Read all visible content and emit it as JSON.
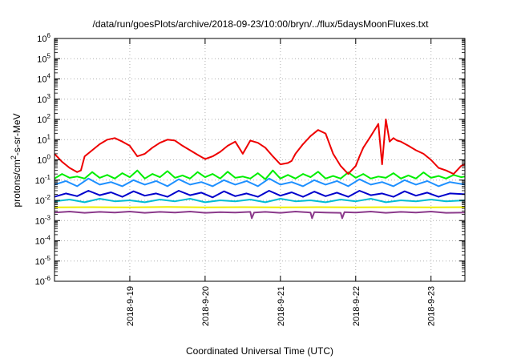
{
  "chart_data": {
    "type": "line",
    "title": "/data/run/goesPlots/archive/2018-09-23/10:00/bryn/../flux/5daysMoonFluxes.txt",
    "xlabel": "Coordinated Universal Time (UTC)",
    "ylabel": "protons/cm²-s-sr-MeV",
    "ylabel_base": "protons/cm",
    "ylabel_sup": "2",
    "ylabel_rest": "-s-sr-MeV",
    "y_scale": "log",
    "ylim": [
      1e-06,
      1000000.0
    ],
    "xlim": [
      0,
      5.45
    ],
    "x_ticks": [
      1,
      2,
      3,
      4,
      5
    ],
    "x_tick_labels": [
      "2018-9-19",
      "2018-9-20",
      "2018-9-21",
      "2018-9-22",
      "2018-9-23"
    ],
    "y_ticks": [
      -6,
      -5,
      -4,
      -3,
      -2,
      -1,
      0,
      1,
      2,
      3,
      4,
      5,
      6
    ],
    "y_tick_labels": [
      {
        "base": "10",
        "exp": "-6"
      },
      {
        "base": "10",
        "exp": "-5"
      },
      {
        "base": "10",
        "exp": "-4"
      },
      {
        "base": "10",
        "exp": "-3"
      },
      {
        "base": "10",
        "exp": "-2"
      },
      {
        "base": "10",
        "exp": "-1"
      },
      {
        "base": "10",
        "exp": "0"
      },
      {
        "base": "10",
        "exp": "1"
      },
      {
        "base": "10",
        "exp": "2"
      },
      {
        "base": "10",
        "exp": "3"
      },
      {
        "base": "10",
        "exp": "4"
      },
      {
        "base": "10",
        "exp": "5"
      },
      {
        "base": "10",
        "exp": "6"
      }
    ],
    "grid": true,
    "series": [
      {
        "color": "#ee0000",
        "x": [
          0.0,
          0.1,
          0.2,
          0.3,
          0.35,
          0.4,
          0.5,
          0.6,
          0.7,
          0.8,
          0.9,
          1.0,
          1.1,
          1.2,
          1.3,
          1.4,
          1.5,
          1.6,
          1.7,
          1.8,
          1.9,
          2.0,
          2.1,
          2.2,
          2.3,
          2.4,
          2.5,
          2.6,
          2.7,
          2.8,
          2.9,
          3.0,
          3.1,
          3.15,
          3.2,
          3.3,
          3.4,
          3.5,
          3.6,
          3.7,
          3.8,
          3.9,
          4.0,
          4.05,
          4.1,
          4.2,
          4.3,
          4.35,
          4.4,
          4.45,
          4.5,
          4.55,
          4.6,
          4.7,
          4.8,
          4.9,
          5.0,
          5.1,
          5.2,
          5.3,
          5.4,
          5.45
        ],
        "y": [
          2,
          0.8,
          0.4,
          0.25,
          0.3,
          1.5,
          3,
          6,
          10,
          12,
          8,
          5,
          1.5,
          2,
          4,
          7,
          10,
          9,
          5,
          3,
          1.8,
          1.1,
          1.5,
          2.5,
          5,
          8,
          2,
          9,
          7,
          4,
          1.5,
          0.6,
          0.7,
          0.9,
          2,
          6,
          15,
          30,
          20,
          2,
          0.5,
          0.2,
          0.5,
          1.5,
          4,
          15,
          60,
          0.6,
          100,
          8,
          12,
          9,
          8,
          5,
          3,
          2,
          1,
          0.4,
          0.3,
          0.2,
          0.5,
          0.6
        ]
      },
      {
        "color": "#00ee00",
        "x": [
          0.0,
          0.1,
          0.2,
          0.3,
          0.4,
          0.5,
          0.6,
          0.7,
          0.8,
          0.9,
          1.0,
          1.1,
          1.2,
          1.3,
          1.4,
          1.5,
          1.6,
          1.7,
          1.8,
          1.9,
          2.0,
          2.1,
          2.2,
          2.3,
          2.4,
          2.5,
          2.6,
          2.7,
          2.8,
          2.9,
          3.0,
          3.1,
          3.2,
          3.3,
          3.4,
          3.5,
          3.6,
          3.7,
          3.8,
          3.9,
          4.0,
          4.1,
          4.2,
          4.3,
          4.4,
          4.5,
          4.6,
          4.7,
          4.8,
          4.9,
          5.0,
          5.1,
          5.2,
          5.3,
          5.4,
          5.45
        ],
        "y": [
          0.12,
          0.2,
          0.13,
          0.15,
          0.12,
          0.25,
          0.13,
          0.18,
          0.12,
          0.22,
          0.14,
          0.3,
          0.12,
          0.2,
          0.14,
          0.28,
          0.13,
          0.17,
          0.12,
          0.25,
          0.14,
          0.2,
          0.12,
          0.26,
          0.13,
          0.15,
          0.12,
          0.22,
          0.11,
          0.3,
          0.12,
          0.18,
          0.12,
          0.2,
          0.14,
          0.26,
          0.12,
          0.16,
          0.12,
          0.24,
          0.13,
          0.2,
          0.12,
          0.15,
          0.13,
          0.22,
          0.12,
          0.17,
          0.12,
          0.24,
          0.13,
          0.16,
          0.12,
          0.18,
          0.14,
          0.15
        ]
      },
      {
        "color": "#1e90ff",
        "x": [
          0.0,
          0.15,
          0.3,
          0.45,
          0.6,
          0.75,
          0.9,
          1.05,
          1.2,
          1.35,
          1.5,
          1.65,
          1.8,
          1.95,
          2.1,
          2.25,
          2.4,
          2.55,
          2.7,
          2.85,
          3.0,
          3.15,
          3.3,
          3.45,
          3.6,
          3.75,
          3.9,
          4.05,
          4.2,
          4.35,
          4.5,
          4.65,
          4.8,
          4.95,
          5.1,
          5.25,
          5.45
        ],
        "y": [
          0.06,
          0.09,
          0.05,
          0.12,
          0.06,
          0.08,
          0.05,
          0.1,
          0.06,
          0.09,
          0.05,
          0.11,
          0.06,
          0.08,
          0.05,
          0.1,
          0.06,
          0.09,
          0.05,
          0.12,
          0.06,
          0.08,
          0.05,
          0.1,
          0.06,
          0.09,
          0.05,
          0.11,
          0.06,
          0.08,
          0.05,
          0.1,
          0.06,
          0.09,
          0.05,
          0.08,
          0.06
        ]
      },
      {
        "color": "#0000cc",
        "x": [
          0.0,
          0.15,
          0.3,
          0.45,
          0.6,
          0.75,
          0.9,
          1.05,
          1.2,
          1.35,
          1.5,
          1.65,
          1.8,
          1.95,
          2.1,
          2.25,
          2.4,
          2.55,
          2.7,
          2.85,
          3.0,
          3.15,
          3.3,
          3.45,
          3.6,
          3.75,
          3.9,
          4.05,
          4.2,
          4.35,
          4.5,
          4.65,
          4.8,
          4.95,
          5.1,
          5.25,
          5.45
        ],
        "y": [
          0.015,
          0.022,
          0.016,
          0.03,
          0.018,
          0.025,
          0.015,
          0.028,
          0.017,
          0.022,
          0.015,
          0.03,
          0.018,
          0.024,
          0.014,
          0.028,
          0.016,
          0.022,
          0.015,
          0.03,
          0.017,
          0.025,
          0.015,
          0.027,
          0.016,
          0.024,
          0.015,
          0.03,
          0.018,
          0.022,
          0.015,
          0.028,
          0.017,
          0.024,
          0.015,
          0.022,
          0.02
        ]
      },
      {
        "color": "#00bcd4",
        "x": [
          0.0,
          0.2,
          0.4,
          0.6,
          0.8,
          1.0,
          1.2,
          1.4,
          1.6,
          1.8,
          2.0,
          2.2,
          2.4,
          2.6,
          2.8,
          3.0,
          3.2,
          3.4,
          3.6,
          3.8,
          4.0,
          4.2,
          4.4,
          4.6,
          4.8,
          5.0,
          5.2,
          5.45
        ],
        "y": [
          0.009,
          0.011,
          0.008,
          0.012,
          0.009,
          0.01,
          0.008,
          0.011,
          0.009,
          0.012,
          0.008,
          0.01,
          0.009,
          0.011,
          0.008,
          0.012,
          0.009,
          0.01,
          0.008,
          0.011,
          0.009,
          0.012,
          0.008,
          0.01,
          0.009,
          0.011,
          0.009,
          0.01
        ]
      },
      {
        "color": "#eeee00",
        "x": [
          0.0,
          0.5,
          1.0,
          1.5,
          2.0,
          2.5,
          3.0,
          3.5,
          4.0,
          4.5,
          5.0,
          5.45
        ],
        "y": [
          0.0045,
          0.0046,
          0.0045,
          0.0047,
          0.0045,
          0.0046,
          0.0045,
          0.0046,
          0.0045,
          0.0046,
          0.0045,
          0.0046
        ]
      },
      {
        "color": "#8b3a8b",
        "x": [
          0.0,
          0.2,
          0.4,
          0.6,
          0.8,
          1.0,
          1.2,
          1.4,
          1.6,
          1.8,
          2.0,
          2.2,
          2.4,
          2.6,
          2.62,
          2.65,
          2.8,
          3.0,
          3.2,
          3.4,
          3.42,
          3.45,
          3.6,
          3.8,
          3.82,
          3.85,
          4.0,
          4.2,
          4.4,
          4.6,
          4.8,
          5.0,
          5.2,
          5.45
        ],
        "y": [
          0.0025,
          0.0028,
          0.0024,
          0.0027,
          0.0025,
          0.0028,
          0.0024,
          0.0027,
          0.0025,
          0.0028,
          0.0024,
          0.0026,
          0.0025,
          0.0027,
          0.0013,
          0.0025,
          0.0027,
          0.0024,
          0.0028,
          0.0025,
          0.0013,
          0.0026,
          0.0025,
          0.0024,
          0.0013,
          0.0026,
          0.0025,
          0.0028,
          0.0024,
          0.0027,
          0.0025,
          0.0028,
          0.0024,
          0.0025
        ]
      }
    ]
  }
}
